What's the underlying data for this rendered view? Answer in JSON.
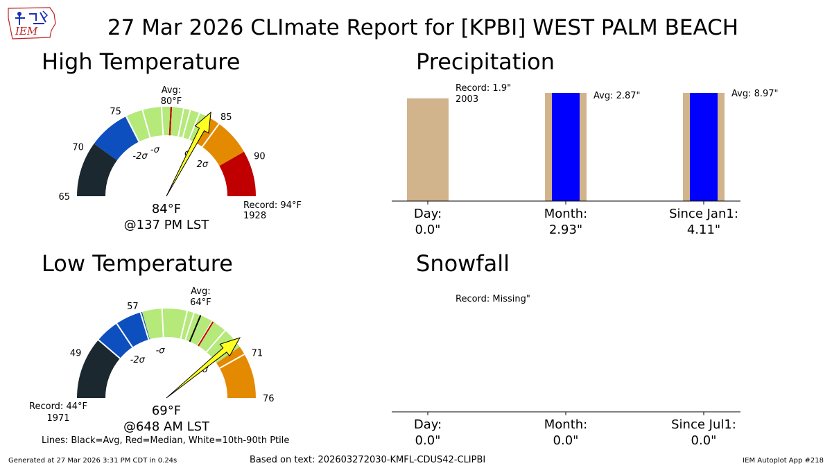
{
  "title": "27 Mar 2026 CLImate Report for [KPBI] WEST PALM BEACH",
  "logo": {
    "text": "IEM",
    "icon": "iem-iowa-logo-icon"
  },
  "colors": {
    "record_low": "#1b2830",
    "low_2sigma": "#0d4fbf",
    "normal": "#b5e97a",
    "high_sigma": "#e48a00",
    "record_high": "#c00000",
    "median_line": "#cc0000",
    "avg_line": "#000000",
    "pointer": "#ffff22",
    "precip_normal": "#d2b48c",
    "precip_obs": "#0000ff",
    "ink": "#000000"
  },
  "chart_data": [
    {
      "type": "gauge",
      "id": "high",
      "title": "High Temperature",
      "min": 65,
      "max": 94,
      "ticks": [
        65,
        70,
        75,
        85,
        90
      ],
      "sigma_marks": [
        {
          "value": 74.2,
          "label": "-2σ"
        },
        {
          "value": 77.3,
          "label": "-σ"
        },
        {
          "value": 83.6,
          "label": "σ"
        },
        {
          "value": 87.2,
          "label": "2σ"
        }
      ],
      "bands": [
        {
          "from": 65,
          "to": 70.8,
          "color": "#1b2830"
        },
        {
          "from": 70.8,
          "to": 75.1,
          "color": "#0d4fbf"
        },
        {
          "from": 75.1,
          "to": 84.2,
          "color": "#b5e97a"
        },
        {
          "from": 84.2,
          "to": 85.3,
          "color": "#e48a00"
        },
        {
          "from": 85.3,
          "to": 89.2,
          "color": "#e48a00"
        },
        {
          "from": 89.2,
          "to": 94,
          "color": "#c00000"
        }
      ],
      "white_lines": [
        75.2,
        77.0,
        79.0,
        81.3,
        82.0,
        83.0,
        85.3
      ],
      "avg": 80,
      "median": 80,
      "observed": 84,
      "value_label": "84°F",
      "time_label": "@137 PM LST",
      "avg_label": "Avg:",
      "avg_value_label": "80°F",
      "record_label": "Record: 94°F",
      "record_year": "1928"
    },
    {
      "type": "gauge",
      "id": "low",
      "title": "Low Temperature",
      "min": 44,
      "max": 76,
      "ticks": [
        49,
        57,
        71,
        76
      ],
      "sigma_marks": [
        {
          "value": 53.5,
          "label": "-2σ"
        },
        {
          "value": 58.7,
          "label": "-σ"
        },
        {
          "value": 69.4,
          "label": "σ"
        }
      ],
      "bands": [
        {
          "from": 44,
          "to": 51.2,
          "color": "#1b2830"
        },
        {
          "from": 51.2,
          "to": 57.2,
          "color": "#0d4fbf"
        },
        {
          "from": 57.2,
          "to": 69.8,
          "color": "#b5e97a"
        },
        {
          "from": 69.8,
          "to": 70.8,
          "color": "#e48a00"
        },
        {
          "from": 70.8,
          "to": 76,
          "color": "#e48a00"
        }
      ],
      "white_lines": [
        51.2,
        54.0,
        57.0,
        59.5,
        62.4,
        63.2,
        65.5,
        67.3,
        68.8,
        70.8
      ],
      "avg": 64,
      "median": 65.6,
      "observed": 69,
      "value_label": "69°F",
      "time_label": "@648 AM LST",
      "avg_label": "Avg:",
      "avg_value_label": "64°F",
      "record_label": "Record: 44°F",
      "record_year": "1971"
    },
    {
      "type": "bar",
      "id": "precip",
      "title": "Precipitation",
      "categories": [
        "Day:",
        "Month:",
        "Since Jan1:"
      ],
      "category_values": [
        "0.0\"",
        "2.93\"",
        "4.11\""
      ],
      "normal_values": [
        1.9,
        2.87,
        8.97
      ],
      "observed_values": [
        0.0,
        2.93,
        4.11
      ],
      "annotations": [
        {
          "text": "Record: 1.9\"",
          "text2": "2003"
        },
        {
          "text": "Avg: 2.87\"",
          "text2": ""
        },
        {
          "text": "Avg: 8.97\"",
          "text2": ""
        }
      ]
    },
    {
      "type": "bar",
      "id": "snow",
      "title": "Snowfall",
      "categories": [
        "Day:",
        "Month:",
        "Since Jul1:"
      ],
      "category_values": [
        "0.0\"",
        "0.0\"",
        "0.0\""
      ],
      "normal_values": [
        0,
        0,
        0
      ],
      "observed_values": [
        0,
        0,
        0
      ],
      "annotations": [
        {
          "text": "Record: Missing\"",
          "text2": ""
        }
      ]
    }
  ],
  "legend_note": "Lines: Black=Avg, Red=Median, White=10th-90th Ptile",
  "footer": {
    "generated": "Generated at 27 Mar 2026 3:31 PM CDT in 0.24s",
    "based_on": "Based on text: 202603272030-KMFL-CDUS42-CLIPBI",
    "app": "IEM Autoplot App #218"
  }
}
